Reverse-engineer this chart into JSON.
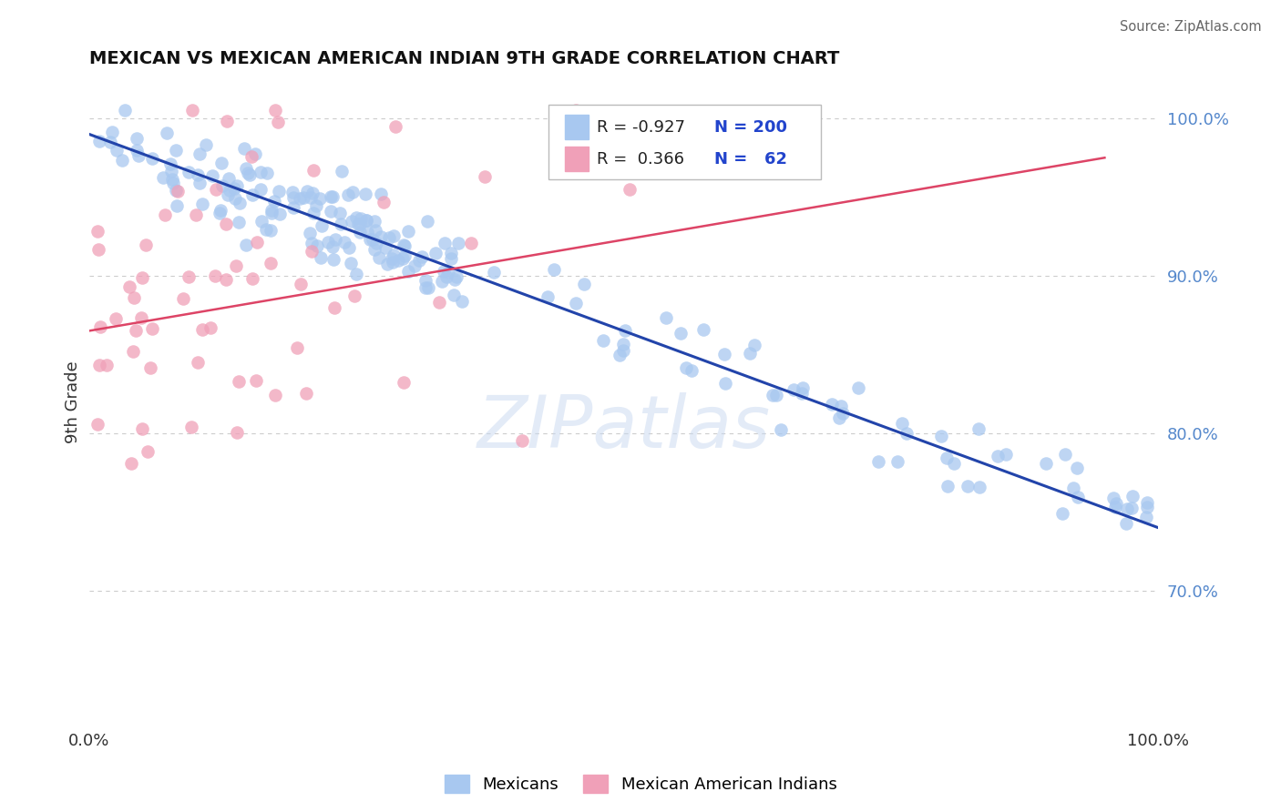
{
  "title": "MEXICAN VS MEXICAN AMERICAN INDIAN 9TH GRADE CORRELATION CHART",
  "source": "Source: ZipAtlas.com",
  "ylabel": "9th Grade",
  "right_yticks": [
    70.0,
    80.0,
    90.0,
    100.0
  ],
  "legend": {
    "blue_label": "Mexicans",
    "pink_label": "Mexican American Indians",
    "blue_R": -0.927,
    "blue_N": 200,
    "pink_R": 0.366,
    "pink_N": 62
  },
  "blue_color": "#a8c8f0",
  "pink_color": "#f0a0b8",
  "blue_line_color": "#2244aa",
  "pink_line_color": "#dd4466",
  "watermark": "ZIPatlas",
  "background_color": "#ffffff",
  "xmin": 0.0,
  "xmax": 1.0,
  "ymin": 0.615,
  "ymax": 1.025,
  "blue_line": {
    "x0": 0.0,
    "y0": 0.99,
    "x1": 1.0,
    "y1": 0.74
  },
  "pink_line": {
    "x0": 0.0,
    "y0": 0.865,
    "x1": 0.95,
    "y1": 0.975
  }
}
